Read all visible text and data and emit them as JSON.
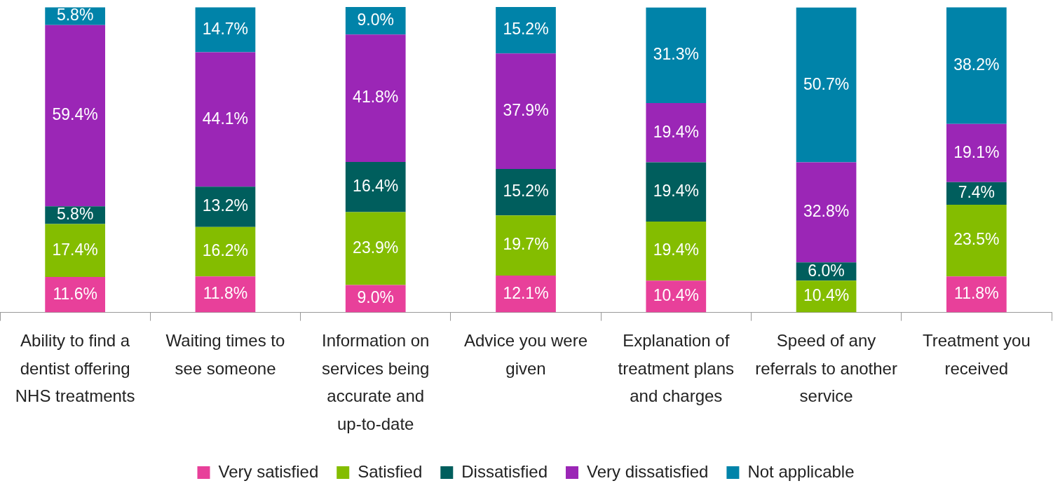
{
  "chart_data": {
    "type": "bar",
    "stacked": true,
    "legend": "bottom",
    "categories": [
      "Ability to find a dentist offering NHS treatments",
      "Waiting times to see someone",
      "Information on services being accurate and up-to-date",
      "Advice you were given",
      "Explanation of treatment plans and charges",
      "Speed of any referrals to another service",
      "Treatment you received"
    ],
    "series": [
      {
        "name": "Very satisfied",
        "color": "#e8409a",
        "values": [
          11.6,
          11.8,
          9.0,
          12.1,
          10.4,
          null,
          11.8
        ],
        "value_labels": [
          "11.6%",
          "11.8%",
          "9.0%",
          "12.1%",
          "10.4%",
          null,
          "11.8%"
        ]
      },
      {
        "name": "Satisfied",
        "color": "#84bd00",
        "values": [
          17.4,
          16.2,
          23.9,
          19.7,
          19.4,
          10.4,
          23.5
        ],
        "value_labels": [
          "17.4%",
          "16.2%",
          "23.9%",
          "19.7%",
          "19.4%",
          "10.4%",
          "23.5%"
        ]
      },
      {
        "name": "Dissatisfied",
        "color": "#005e5d",
        "values": [
          5.8,
          13.2,
          16.4,
          15.2,
          19.4,
          6.0,
          7.4
        ],
        "value_labels": [
          "5.8%",
          "13.2%",
          "16.4%",
          "15.2%",
          "19.4%",
          "6.0%",
          "7.4%"
        ]
      },
      {
        "name": "Very dissatisfied",
        "color": "#9b26b6",
        "values": [
          59.4,
          44.1,
          41.8,
          37.9,
          19.4,
          32.8,
          19.1
        ],
        "value_labels": [
          "59.4%",
          "44.1%",
          "41.8%",
          "37.9%",
          "19.4%",
          "32.8%",
          "19.1%"
        ]
      },
      {
        "name": "Not applicable",
        "color": "#0083a9",
        "values": [
          5.8,
          14.7,
          9.0,
          15.2,
          31.3,
          50.7,
          38.2
        ],
        "value_labels": [
          "5.8%",
          "14.7%",
          "9.0%",
          "15.2%",
          "31.3%",
          "50.7%",
          "38.2%"
        ]
      }
    ]
  }
}
